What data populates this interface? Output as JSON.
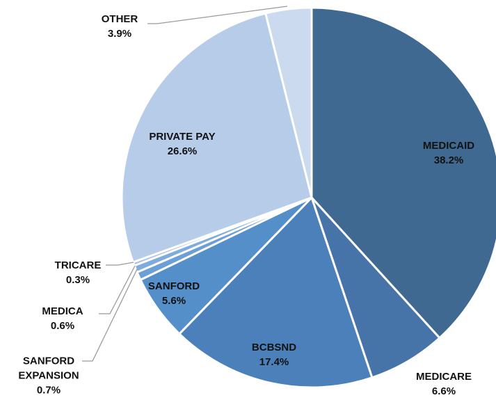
{
  "chart_data": {
    "type": "pie",
    "categories": [
      "MEDICAID",
      "MEDICARE",
      "BCBSND",
      "SANFORD",
      "SANFORD EXPANSION",
      "MEDICA",
      "TRICARE",
      "PRIVATE PAY",
      "OTHER"
    ],
    "values": [
      38.2,
      6.6,
      17.4,
      5.6,
      0.7,
      0.6,
      0.3,
      26.6,
      3.9
    ],
    "value_labels": [
      "38.2%",
      "6.6%",
      "17.4%",
      "5.6%",
      "0.7%",
      "0.6%",
      "0.3%",
      "26.6%",
      "3.9%"
    ],
    "colors": [
      "#3f6991",
      "#4674a8",
      "#4b80ba",
      "#548fca",
      "#6b9fd5",
      "#7fabdd",
      "#a2bfe5",
      "#b7cce9",
      "#cbdaef"
    ]
  }
}
